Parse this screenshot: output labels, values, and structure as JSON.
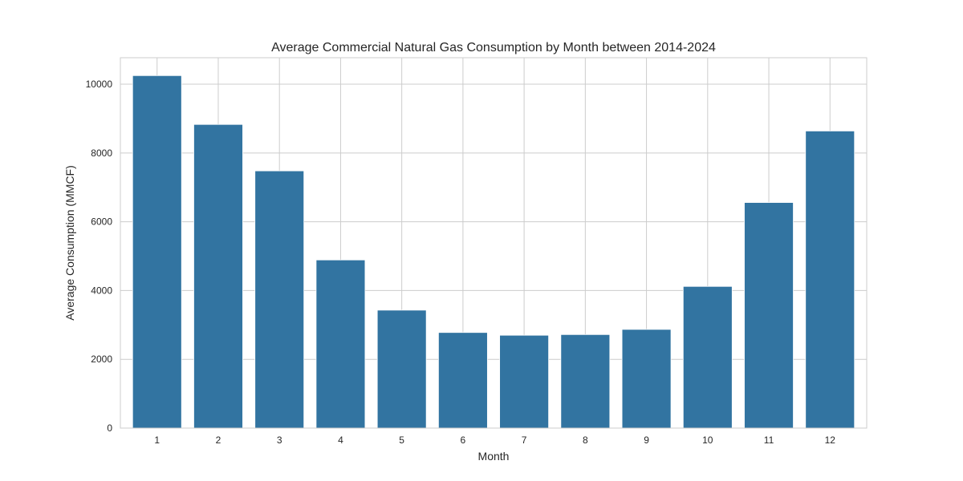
{
  "chart_data": {
    "type": "bar",
    "title": "Average Commercial Natural Gas Consumption by Month between 2014-2024",
    "xlabel": "Month",
    "ylabel": "Average Consumption (MMCF)",
    "categories": [
      "1",
      "2",
      "3",
      "4",
      "5",
      "6",
      "7",
      "8",
      "9",
      "10",
      "11",
      "12"
    ],
    "values": [
      10250,
      8830,
      7480,
      4890,
      3430,
      2780,
      2700,
      2720,
      2870,
      4120,
      6560,
      8640
    ],
    "ylim": [
      0,
      10770
    ],
    "yticks": [
      0,
      2000,
      4000,
      6000,
      8000,
      10000
    ],
    "grid": true,
    "colors": {
      "bar": "#3274a1"
    }
  }
}
